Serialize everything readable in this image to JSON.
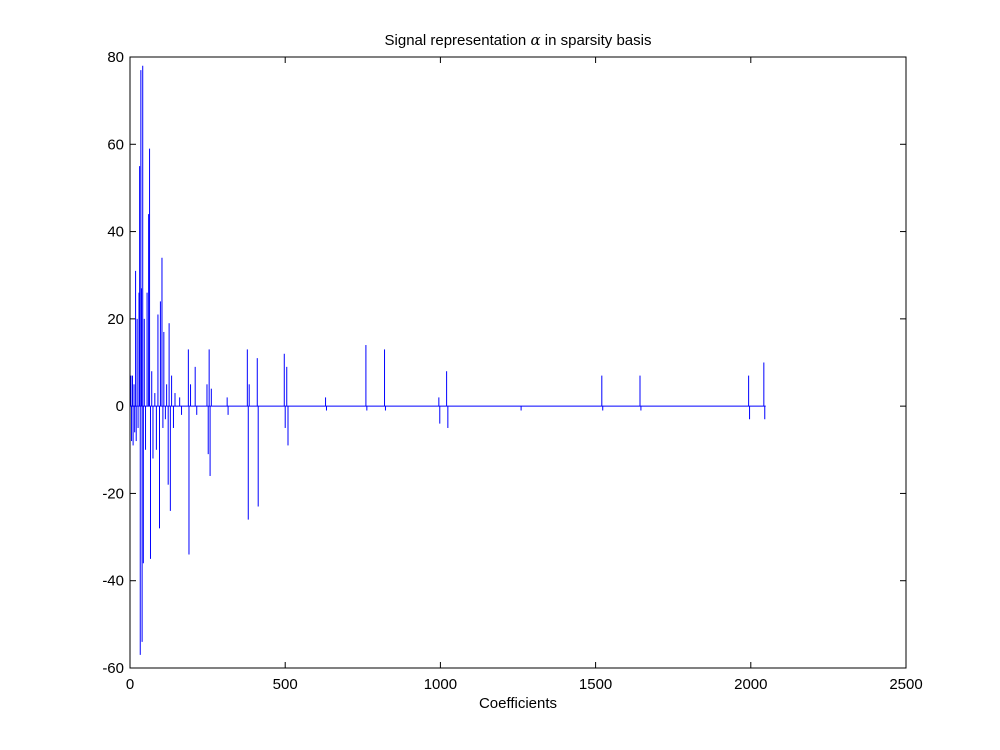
{
  "chart_data": {
    "type": "line",
    "title_main": "Signal representation ",
    "title_symbol": "α",
    "title_rest": " in sparsity basis",
    "xlabel": "Coefficients",
    "ylabel": "",
    "xlim": [
      0,
      2500
    ],
    "ylim": [
      -60,
      80
    ],
    "x_ticks": [
      0,
      500,
      1000,
      1500,
      2000,
      2500
    ],
    "y_ticks": [
      -60,
      -40,
      -20,
      0,
      20,
      40,
      60,
      80
    ],
    "grid": false,
    "line_color": "#0000ff",
    "x_data_end": 2048,
    "series": [
      {
        "spikes": [
          [
            3,
            7
          ],
          [
            5,
            -8
          ],
          [
            8,
            7
          ],
          [
            10,
            -9
          ],
          [
            13,
            5
          ],
          [
            15,
            -6
          ],
          [
            18,
            31
          ],
          [
            20,
            -8
          ],
          [
            23,
            20
          ],
          [
            26,
            -5
          ],
          [
            29,
            26
          ],
          [
            31,
            55
          ],
          [
            33,
            -57
          ],
          [
            35,
            77
          ],
          [
            37,
            27
          ],
          [
            39,
            -54
          ],
          [
            41,
            78
          ],
          [
            43,
            -36
          ],
          [
            46,
            20
          ],
          [
            50,
            -10
          ],
          [
            55,
            26
          ],
          [
            60,
            44
          ],
          [
            63,
            59
          ],
          [
            66,
            -35
          ],
          [
            70,
            8
          ],
          [
            74,
            -12
          ],
          [
            80,
            3
          ],
          [
            85,
            -10
          ],
          [
            90,
            21
          ],
          [
            95,
            -28
          ],
          [
            98,
            24
          ],
          [
            103,
            34
          ],
          [
            106,
            -5
          ],
          [
            109,
            17
          ],
          [
            114,
            -3
          ],
          [
            118,
            5
          ],
          [
            123,
            -18
          ],
          [
            126,
            19
          ],
          [
            130,
            -24
          ],
          [
            134,
            7
          ],
          [
            140,
            -5
          ],
          [
            145,
            3
          ],
          [
            160,
            2
          ],
          [
            166,
            -2
          ],
          [
            188,
            13
          ],
          [
            190,
            -34
          ],
          [
            195,
            5
          ],
          [
            210,
            9
          ],
          [
            215,
            -2
          ],
          [
            248,
            5
          ],
          [
            252,
            -11
          ],
          [
            255,
            13
          ],
          [
            258,
            -16
          ],
          [
            262,
            4
          ],
          [
            313,
            2
          ],
          [
            316,
            -2
          ],
          [
            378,
            13
          ],
          [
            381,
            -26
          ],
          [
            384,
            5
          ],
          [
            410,
            11
          ],
          [
            413,
            -23
          ],
          [
            497,
            12
          ],
          [
            500,
            -5
          ],
          [
            505,
            9
          ],
          [
            509,
            -9
          ],
          [
            630,
            2
          ],
          [
            633,
            -1
          ],
          [
            760,
            14
          ],
          [
            763,
            -1
          ],
          [
            820,
            13
          ],
          [
            823,
            -1
          ],
          [
            995,
            2
          ],
          [
            998,
            -4
          ],
          [
            1020,
            8
          ],
          [
            1024,
            -5
          ],
          [
            1260,
            -1
          ],
          [
            1520,
            7
          ],
          [
            1523,
            -1
          ],
          [
            1643,
            7
          ],
          [
            1646,
            -1
          ],
          [
            1993,
            7
          ],
          [
            1996,
            -3
          ],
          [
            2042,
            10
          ],
          [
            2045,
            -3
          ]
        ]
      }
    ]
  }
}
